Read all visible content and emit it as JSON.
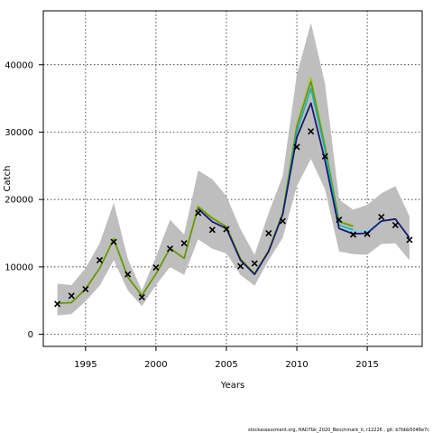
{
  "chart_data": {
    "type": "line",
    "title": "",
    "xlabel": "Years",
    "ylabel": "Catch",
    "xlim": [
      1992,
      2018.9
    ],
    "ylim": [
      -1800,
      48000
    ],
    "x_ticks": [
      1995,
      2000,
      2005,
      2010,
      2015
    ],
    "y_ticks": [
      0,
      10000,
      20000,
      30000,
      40000
    ],
    "grid": true,
    "x": [
      1993,
      1994,
      1995,
      1996,
      1997,
      1998,
      1999,
      2000,
      2001,
      2002,
      2003,
      2004,
      2005,
      2006,
      2007,
      2008,
      2009,
      2010,
      2011,
      2012,
      2013,
      2014,
      2015,
      2016,
      2017,
      2018
    ],
    "observed": {
      "name": "",
      "marker": "x",
      "values": [
        4500,
        5700,
        6700,
        11000,
        13700,
        8900,
        5500,
        9900,
        12700,
        13500,
        18000,
        15500,
        15600,
        10100,
        10500,
        15000,
        16800,
        27800,
        30100,
        26400,
        17000,
        14800,
        14900,
        17400,
        16200,
        14000
      ]
    },
    "band": {
      "name": "",
      "color": "#bebebe",
      "upper": [
        7500,
        7300,
        9800,
        13500,
        19500,
        11200,
        6500,
        11500,
        17000,
        14800,
        24300,
        23000,
        20500,
        15600,
        11800,
        18000,
        23500,
        38500,
        46200,
        37200,
        20000,
        18500,
        19200,
        20900,
        22000,
        17500
      ],
      "lower": [
        2800,
        3000,
        4900,
        7200,
        11000,
        6500,
        4200,
        7300,
        10000,
        8800,
        14100,
        12700,
        12000,
        8800,
        7200,
        11000,
        14300,
        22000,
        26000,
        21500,
        12300,
        11900,
        11800,
        13400,
        13500,
        11000
      ]
    },
    "series": [
      {
        "name": "",
        "color": "#9acd32",
        "width": 2.2,
        "x": [
          1993,
          1994,
          1995,
          1996,
          1997,
          1998,
          1999,
          2000,
          2001,
          2002,
          2003,
          2004,
          2005,
          2006,
          2007,
          2008,
          2009,
          2010,
          2011,
          2012,
          2013,
          2014
        ],
        "values": [
          4600,
          4700,
          6700,
          9800,
          14200,
          8500,
          5800,
          9000,
          12800,
          11300,
          19000,
          17300,
          16000,
          11200,
          9000,
          12400,
          18000,
          31000,
          38000,
          28000,
          16800,
          16100
        ]
      },
      {
        "name": "",
        "color": "#6b8e23",
        "width": 1.6,
        "x": [
          1993,
          1994,
          1995,
          1996,
          1997,
          1998,
          1999,
          2000,
          2001,
          2002,
          2003,
          2004,
          2005,
          2006,
          2007,
          2008,
          2009,
          2010,
          2011,
          2012,
          2013,
          2014
        ],
        "values": [
          4600,
          4700,
          6700,
          9800,
          14100,
          8450,
          5750,
          8950,
          12750,
          11250,
          18900,
          17200,
          15950,
          11150,
          8950,
          12350,
          17900,
          30800,
          37500,
          27800,
          16700,
          16000
        ]
      },
      {
        "name": "",
        "color": "#20b2aa",
        "width": 1.6,
        "x": [
          2009,
          2010,
          2011,
          2012,
          2013,
          2014
        ],
        "values": [
          17900,
          30000,
          36500,
          27300,
          16200,
          15500
        ]
      },
      {
        "name": "",
        "color": "#87ceeb",
        "width": 1.8,
        "x": [
          2013,
          2014,
          2015,
          2016
        ],
        "values": [
          15800,
          15200,
          15400,
          16500
        ]
      },
      {
        "name": "",
        "color": "#191970",
        "width": 1.8,
        "x": [
          2003,
          2004,
          2005,
          2006,
          2007,
          2008,
          2009,
          2010,
          2011,
          2012,
          2013,
          2014,
          2015,
          2016,
          2017,
          2018
        ],
        "values": [
          18600,
          16700,
          15700,
          11000,
          8900,
          12300,
          17800,
          29200,
          34300,
          25800,
          15700,
          14900,
          15000,
          16800,
          17100,
          14300
        ]
      }
    ]
  },
  "footer": {
    "text": "stockassessment.org, HAD7bk_2020_Benchmark_II, r12226 , git: b7bbb5048e7c"
  }
}
